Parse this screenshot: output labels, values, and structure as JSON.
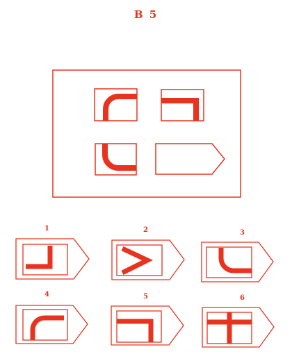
{
  "test": {
    "title": "B 5",
    "accent_color": "#e8331f"
  },
  "options": [
    {
      "number": "1"
    },
    {
      "number": "2"
    },
    {
      "number": "3"
    },
    {
      "number": "4"
    },
    {
      "number": "5"
    },
    {
      "number": "6"
    }
  ]
}
